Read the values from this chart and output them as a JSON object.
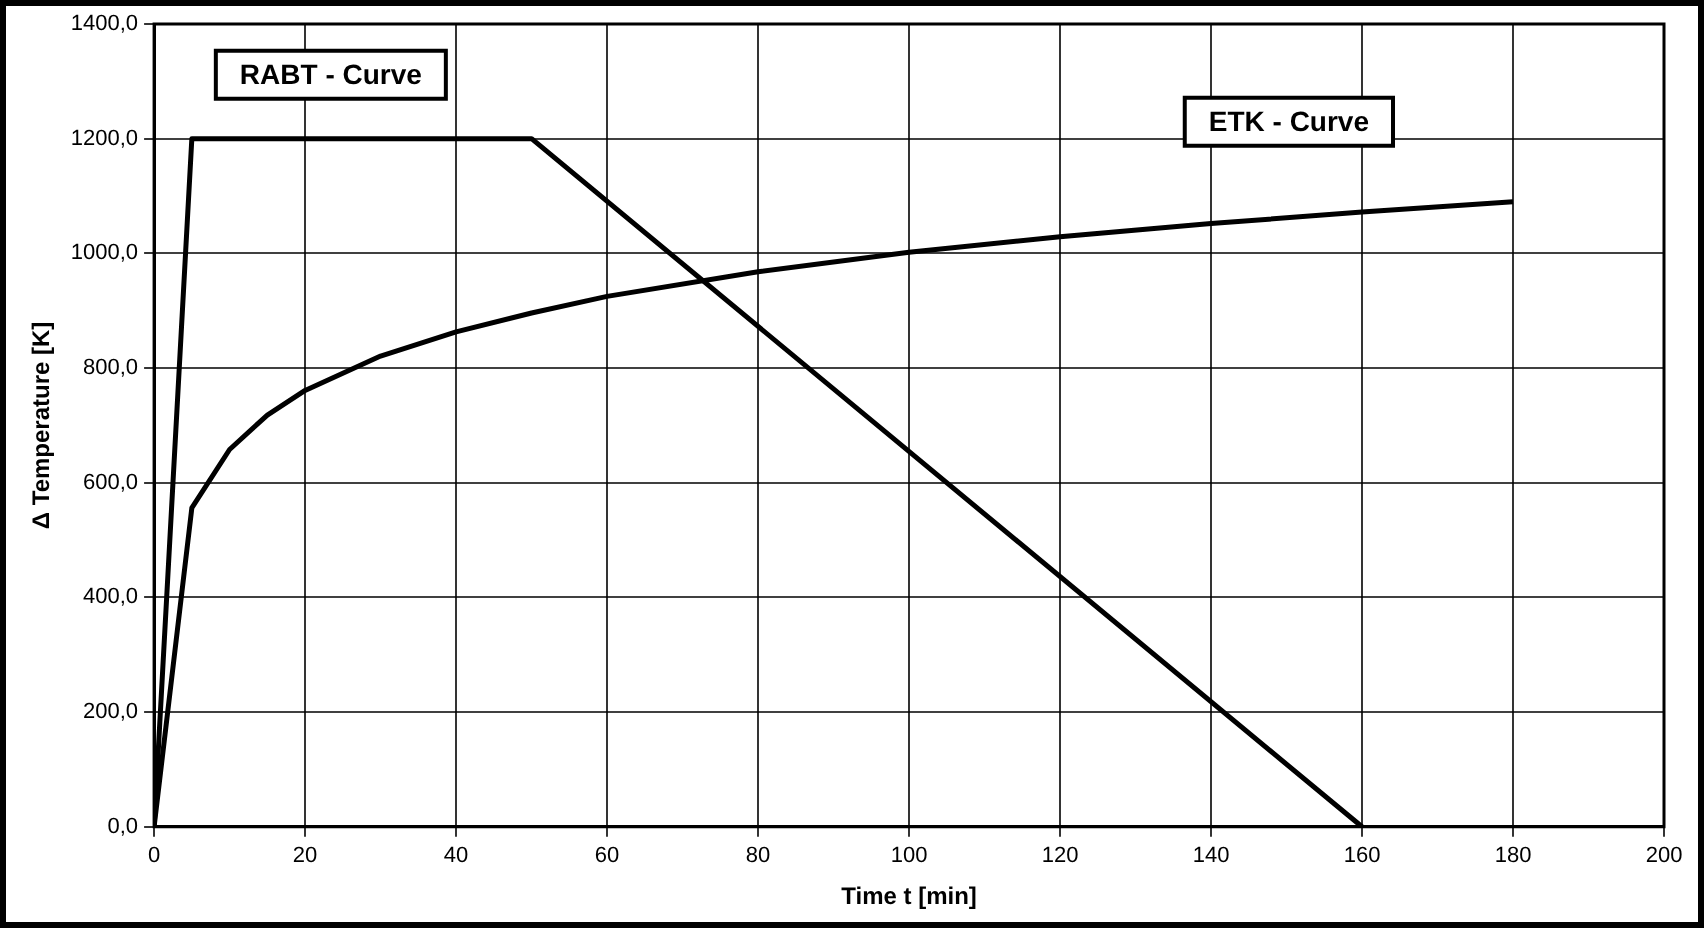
{
  "chart_data": {
    "type": "line",
    "xlabel": "Time t [min]",
    "ylabel": "Δ Temperature [K]",
    "xlim": [
      0,
      200
    ],
    "xticks": [
      0,
      20,
      40,
      60,
      80,
      100,
      120,
      140,
      160,
      180,
      200
    ],
    "ylim": [
      0,
      1400
    ],
    "yticks": [
      {
        "value": 0,
        "label": "0,0"
      },
      {
        "value": 200,
        "label": "200,0"
      },
      {
        "value": 400,
        "label": "400,0"
      },
      {
        "value": 600,
        "label": "600,0"
      },
      {
        "value": 800,
        "label": "800,0"
      },
      {
        "value": 1000,
        "label": "1000,0"
      },
      {
        "value": 1200,
        "label": "1200,0"
      },
      {
        "value": 1400,
        "label": "1400,0"
      }
    ],
    "grid": true,
    "legend": false,
    "marker": "none",
    "line_style": "solid",
    "series": [
      {
        "name": "RABT - Curve",
        "color": "#000000",
        "x": [
          0,
          5,
          50,
          160
        ],
        "values": [
          0,
          1200,
          1200,
          0
        ]
      },
      {
        "name": "ETK - Curve",
        "color": "#000000",
        "x": [
          0,
          5,
          10,
          15,
          20,
          30,
          40,
          50,
          60,
          80,
          100,
          120,
          140,
          160,
          180
        ],
        "values": [
          0,
          556,
          658,
          718,
          761,
          821,
          863,
          896,
          925,
          968,
          1002,
          1029,
          1052,
          1072,
          1090
        ]
      }
    ]
  }
}
